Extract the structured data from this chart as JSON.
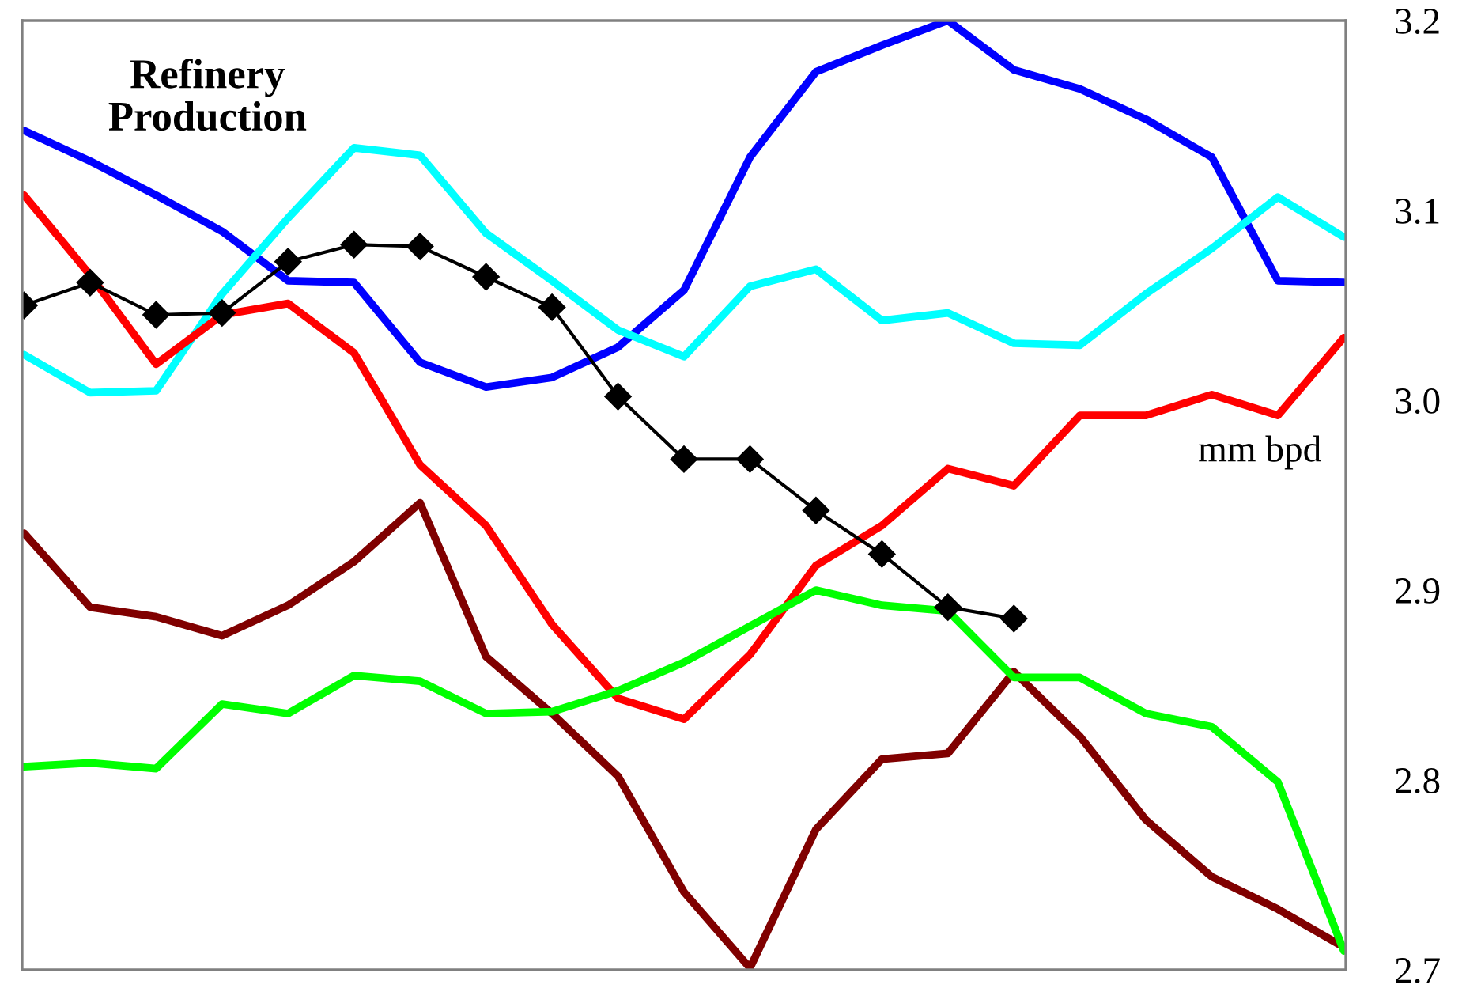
{
  "chart_data": {
    "type": "line",
    "title": "Refinery\nProduction",
    "annotations": [
      "mm bpd"
    ],
    "categories": [
      null,
      null,
      null,
      null,
      null,
      null,
      null,
      null,
      null,
      null,
      null,
      null,
      null,
      null,
      null,
      null,
      null,
      null,
      null,
      null,
      null
    ],
    "ylim": [
      2.7,
      3.2
    ],
    "yticks": [
      2.7,
      2.8,
      2.9,
      {
        "value": 3.0,
        "label": "3.0"
      },
      3.1,
      3.2
    ],
    "tick_labels": "y",
    "grid": false,
    "legend": false,
    "series": [
      {
        "color": "#0000ff",
        "marker": "none",
        "values": [
          3.142,
          3.126,
          3.108,
          3.089,
          3.063,
          3.062,
          3.02,
          3.007,
          3.012,
          3.028,
          3.058,
          3.128,
          3.173,
          3.187,
          3.2,
          3.174,
          3.164,
          3.148,
          3.128,
          3.063,
          3.062
        ]
      },
      {
        "color": "#00ffff",
        "marker": "none",
        "values": [
          3.024,
          3.004,
          3.005,
          3.056,
          3.096,
          3.133,
          3.129,
          3.088,
          3.063,
          3.037,
          3.023,
          3.06,
          3.069,
          3.042,
          3.046,
          3.03,
          3.029,
          3.056,
          3.08,
          3.107,
          3.086
        ]
      },
      {
        "color": "#ff0000",
        "marker": "none",
        "values": [
          3.108,
          3.066,
          3.019,
          3.045,
          3.051,
          3.025,
          2.966,
          2.934,
          2.882,
          2.843,
          2.832,
          2.866,
          2.913,
          2.934,
          2.964,
          2.955,
          2.992,
          2.992,
          3.003,
          2.992,
          3.033
        ]
      },
      {
        "color": "#800000",
        "marker": "none",
        "values": [
          2.93,
          2.891,
          2.886,
          2.876,
          2.892,
          2.915,
          2.946,
          2.865,
          2.835,
          2.802,
          2.741,
          2.701,
          2.774,
          2.811,
          2.814,
          2.857,
          2.823,
          2.779,
          2.749,
          2.732,
          2.712
        ]
      },
      {
        "color": "#00ff00",
        "marker": "none",
        "values": [
          2.807,
          2.809,
          2.806,
          2.84,
          2.835,
          2.855,
          2.852,
          2.835,
          2.836,
          2.847,
          2.862,
          2.881,
          2.9,
          2.892,
          2.889,
          2.854,
          2.854,
          2.835,
          2.828,
          2.799,
          2.71
        ]
      },
      {
        "color": "#000000",
        "marker": "diamond",
        "values": [
          3.05,
          3.062,
          3.045,
          3.046,
          3.073,
          3.082,
          3.081,
          3.065,
          3.049,
          3.002,
          2.969,
          2.969,
          2.942,
          2.919,
          2.891,
          2.885,
          null,
          null,
          null,
          null,
          null
        ]
      }
    ]
  }
}
